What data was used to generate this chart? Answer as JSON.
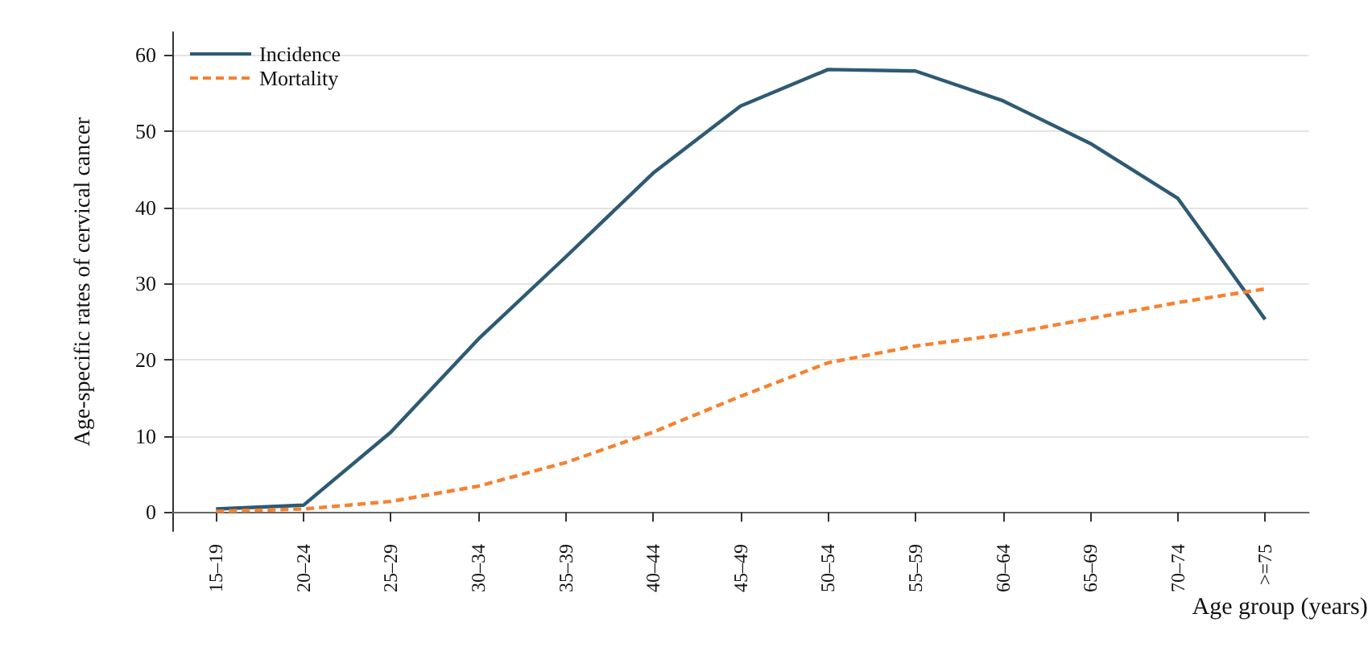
{
  "chart_data": {
    "type": "line",
    "xlabel": "Age group (years)",
    "ylabel": "Age-specific rates of cervical cancer",
    "categories": [
      "15–19",
      "20–24",
      "25–29",
      "30–34",
      "35–39",
      "40–44",
      "45–49",
      "50–54",
      "55–59",
      "60–64",
      "65–69",
      "70–74",
      ">=75"
    ],
    "series": [
      {
        "name": "Incidence",
        "color": "#2e5a73",
        "line_style": "solid",
        "values": [
          0.4,
          0.9,
          10.5,
          22.7,
          33.5,
          44.5,
          53.3,
          58.1,
          57.9,
          54.0,
          48.4,
          41.2,
          25.3
        ]
      },
      {
        "name": "Mortality",
        "color": "#f58231",
        "line_style": "dashed",
        "values": [
          0.1,
          0.4,
          1.4,
          3.4,
          6.5,
          10.5,
          15.2,
          19.6,
          21.8,
          23.3,
          25.4,
          27.5,
          29.3
        ]
      }
    ],
    "ylim": [
      -2.5,
      63
    ],
    "yticks": [
      0,
      10,
      20,
      30,
      40,
      50,
      60
    ],
    "grid": "y",
    "legend": "top left",
    "marker": "none"
  }
}
